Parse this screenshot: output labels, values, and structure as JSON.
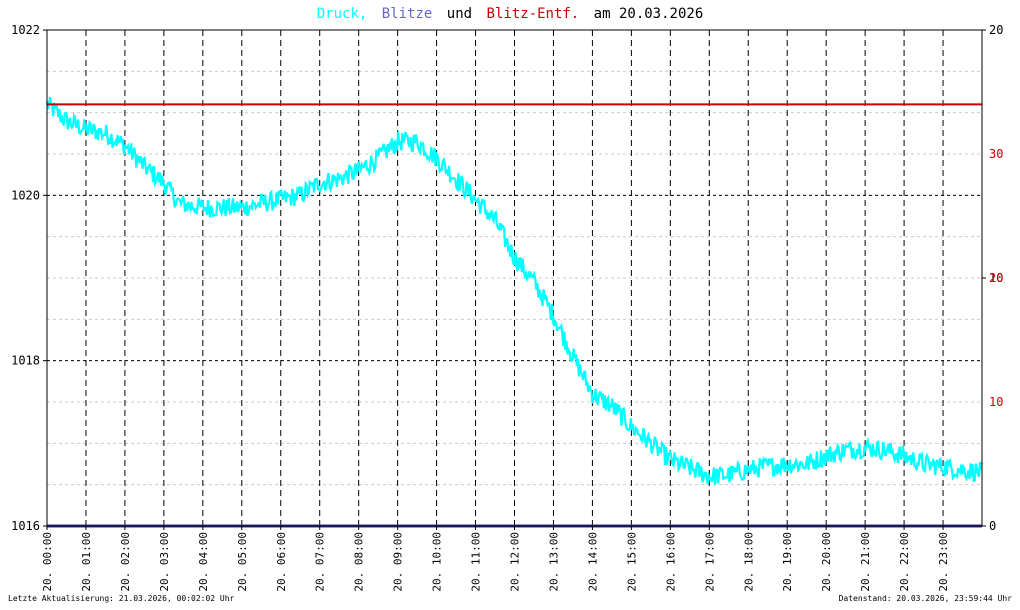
{
  "title": {
    "part1": "Druck,",
    "part2": "Blitze",
    "part3": "und",
    "part4": "Blitz-Entf.",
    "part5": "am 20.03.2026"
  },
  "footer": {
    "left": "Letzte Aktualisierung: 21.03.2026, 00:02:02 Uhr",
    "right": "Datenstand: 20.03.2026, 23:59:44 Uhr"
  },
  "colors": {
    "pressure": "#00ffff",
    "strikes": "#333399",
    "distance": "#cc0000",
    "grid_major": "#000000",
    "grid_minor": "#cccccc",
    "frame": "#000000",
    "text": "#000000",
    "right_axis_black": "#000000",
    "right_axis_red": "#cc0000"
  },
  "chart_data": {
    "type": "line",
    "title": "Druck, Blitze und Blitz-Entf. am 20.03.2026",
    "x_tick_labels": [
      "20. 00:00",
      "20. 01:00",
      "20. 02:00",
      "20. 03:00",
      "20. 04:00",
      "20. 05:00",
      "20. 06:00",
      "20. 07:00",
      "20. 08:00",
      "20. 09:00",
      "20. 10:00",
      "20. 11:00",
      "20. 12:00",
      "20. 13:00",
      "20. 14:00",
      "20. 15:00",
      "20. 16:00",
      "20. 17:00",
      "20. 18:00",
      "20. 19:00",
      "20. 20:00",
      "20. 21:00",
      "20. 22:00",
      "20. 23:00"
    ],
    "x_range_hours": [
      0,
      24
    ],
    "y_left": {
      "ylim": [
        1016,
        1022
      ],
      "ticks": [
        1016,
        1018,
        1020,
        1022
      ]
    },
    "y_right_black": {
      "ylim": [
        0,
        20
      ],
      "ticks": [
        0,
        10,
        20
      ]
    },
    "y_right_red": {
      "ylim": [
        0,
        40
      ],
      "ticks": [
        10,
        20,
        30
      ]
    },
    "grid": true,
    "series": [
      {
        "name": "Druck",
        "axis": "left",
        "x_hours": [
          0,
          0.25,
          0.5,
          1,
          1.5,
          2,
          2.5,
          3,
          3.4,
          4,
          4.5,
          5,
          5.5,
          6,
          6.5,
          7,
          7.5,
          8,
          8.5,
          9,
          9.5,
          10,
          10.5,
          11,
          11.5,
          12,
          12.5,
          13,
          13.5,
          14,
          14.5,
          15,
          15.5,
          16,
          16.5,
          17,
          17.5,
          18,
          18.5,
          19,
          19.5,
          20,
          20.5,
          21,
          21.5,
          22,
          22.5,
          23,
          23.5,
          24
        ],
        "values": [
          1021.1,
          1021.0,
          1020.9,
          1020.8,
          1020.75,
          1020.6,
          1020.35,
          1020.15,
          1019.9,
          1019.85,
          1019.85,
          1019.85,
          1019.9,
          1019.95,
          1020.0,
          1020.15,
          1020.2,
          1020.3,
          1020.45,
          1020.65,
          1020.65,
          1020.45,
          1020.2,
          1019.95,
          1019.7,
          1019.25,
          1018.95,
          1018.55,
          1018.05,
          1017.6,
          1017.45,
          1017.2,
          1017.0,
          1016.8,
          1016.7,
          1016.6,
          1016.62,
          1016.68,
          1016.72,
          1016.75,
          1016.75,
          1016.85,
          1016.92,
          1016.95,
          1016.92,
          1016.85,
          1016.75,
          1016.72,
          1016.68,
          1016.65
        ],
        "noise_amplitude": 0.12
      },
      {
        "name": "Blitz-Entf.",
        "axis": "right_red",
        "x_hours": [
          0,
          24
        ],
        "values": [
          34,
          34
        ]
      },
      {
        "name": "Blitze",
        "axis": "right_black",
        "x_hours": [
          0,
          24
        ],
        "values": [
          0,
          0
        ]
      }
    ]
  }
}
